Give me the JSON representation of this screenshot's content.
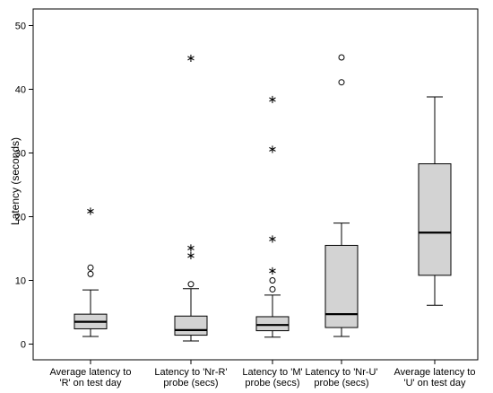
{
  "chart_data": {
    "type": "boxplot",
    "ylabel": "Latency (seconds)",
    "ylim": [
      -3,
      52
    ],
    "yticks": [
      "0",
      "10",
      "20",
      "30",
      "40",
      "50"
    ],
    "grid": false,
    "legend": "none",
    "colors": {
      "box_fill": "#d3d3d3",
      "stroke": "#000000",
      "frame": "#000000"
    },
    "categories": [
      {
        "lines": [
          "Average latency to",
          "'R' on test day"
        ]
      },
      {
        "lines": [
          "Latency to 'Nr-R'",
          "probe (secs)"
        ]
      },
      {
        "lines": [
          "Latency to 'M'",
          "probe (secs)"
        ]
      },
      {
        "lines": [
          "Latency to 'Nr-U'",
          "probe (secs)"
        ]
      },
      {
        "lines": [
          "Average latency to",
          "'U' on test day"
        ]
      }
    ],
    "boxes": [
      {
        "whisker_low": 1.2,
        "q1": 2.4,
        "median": 3.5,
        "q3": 4.7,
        "whisker_high": 8.5,
        "outliers": [
          11.0,
          12.0
        ],
        "extremes": [
          21.0
        ]
      },
      {
        "whisker_low": 0.5,
        "q1": 1.4,
        "median": 2.2,
        "q3": 4.4,
        "whisker_high": 8.7,
        "outliers": [
          9.4
        ],
        "extremes": [
          14.0,
          15.2,
          45.0
        ]
      },
      {
        "whisker_low": 1.1,
        "q1": 2.1,
        "median": 3.0,
        "q3": 4.3,
        "whisker_high": 7.7,
        "outliers": [
          8.6,
          10.0
        ],
        "extremes": [
          11.6,
          16.6,
          30.7,
          38.5
        ]
      },
      {
        "whisker_low": 1.2,
        "q1": 2.6,
        "median": 4.7,
        "q3": 15.5,
        "whisker_high": 19.0,
        "outliers": [
          41.1,
          45.0
        ],
        "extremes": []
      },
      {
        "whisker_low": 6.1,
        "q1": 10.8,
        "median": 17.5,
        "q3": 28.3,
        "whisker_high": 38.8,
        "outliers": [],
        "extremes": []
      }
    ]
  }
}
